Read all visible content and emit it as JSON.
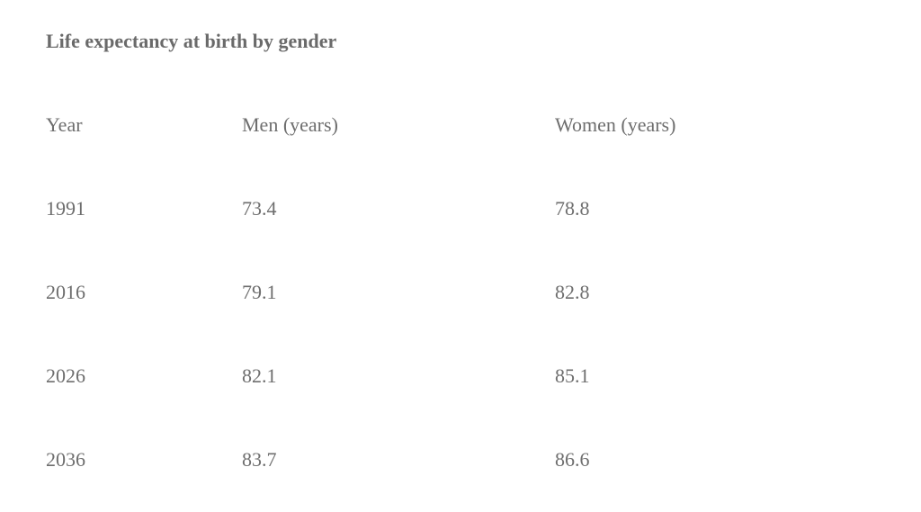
{
  "chart_data": {
    "type": "table",
    "title": "Life expectancy at birth by gender",
    "columns": [
      "Year",
      "Men (years)",
      "Women (years)"
    ],
    "rows": [
      [
        "1991",
        "73.4",
        "78.8"
      ],
      [
        "2016",
        "79.1",
        "82.8"
      ],
      [
        "2026",
        "82.1",
        "85.1"
      ],
      [
        "2036",
        "83.7",
        "86.6"
      ]
    ]
  }
}
